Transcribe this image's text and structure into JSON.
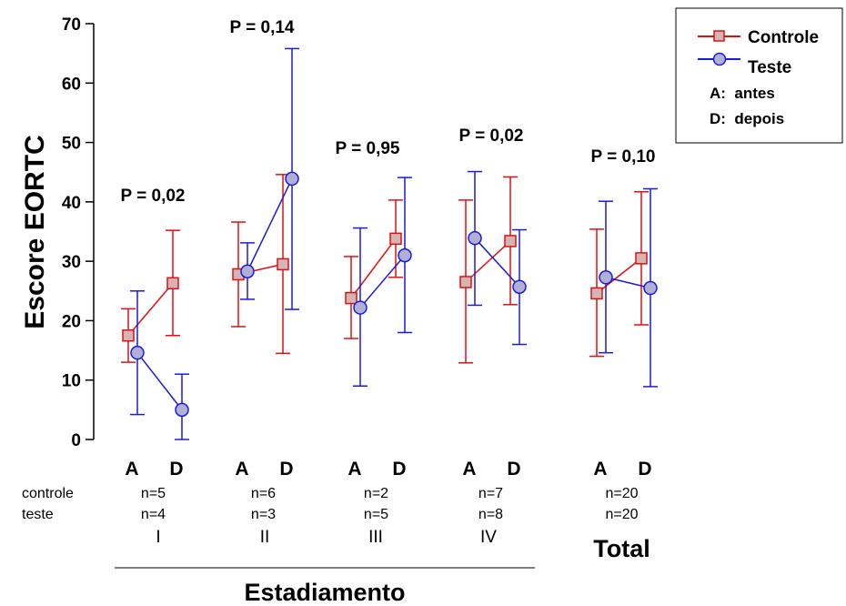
{
  "chart_data": {
    "type": "line",
    "ylabel": "Escore EORTC",
    "xlabel": "Estadiamento",
    "ylim": [
      0,
      70
    ],
    "yticks": [
      0,
      10,
      20,
      30,
      40,
      50,
      60,
      70
    ],
    "x_tick_labels": [
      "A",
      "D"
    ],
    "row_labels": [
      "controle",
      "teste"
    ],
    "groups": [
      {
        "label": "I",
        "p_value": "P = 0,02",
        "n_controle": "n=5",
        "n_teste": "n=4",
        "controle": {
          "mean": [
            17.5,
            26.3
          ],
          "low": [
            13,
            17.5
          ],
          "high": [
            22,
            35.2
          ]
        },
        "teste": {
          "mean": [
            14.6,
            5
          ],
          "low": [
            4.2,
            0
          ],
          "high": [
            25,
            11
          ]
        }
      },
      {
        "label": "II",
        "p_value": "P = 0,14",
        "n_controle": "n=6",
        "n_teste": "n=3",
        "controle": {
          "mean": [
            27.8,
            29.5
          ],
          "low": [
            19,
            14.5
          ],
          "high": [
            36.6,
            44.6
          ]
        },
        "teste": {
          "mean": [
            28.3,
            43.9
          ],
          "low": [
            23.6,
            21.9
          ],
          "high": [
            33.1,
            65.8
          ]
        }
      },
      {
        "label": "III",
        "p_value": "P = 0,95",
        "n_controle": "n=2",
        "n_teste": "n=5",
        "controle": {
          "mean": [
            23.8,
            33.8
          ],
          "low": [
            17,
            27.3
          ],
          "high": [
            30.8,
            40.3
          ]
        },
        "teste": {
          "mean": [
            22.2,
            31
          ],
          "low": [
            9,
            18
          ],
          "high": [
            35.6,
            44.1
          ]
        }
      },
      {
        "label": "IV",
        "p_value": "P = 0,02",
        "n_controle": "n=7",
        "n_teste": "n=8",
        "controle": {
          "mean": [
            26.5,
            33.4
          ],
          "low": [
            12.9,
            22.7
          ],
          "high": [
            40.3,
            44.2
          ]
        },
        "teste": {
          "mean": [
            33.9,
            25.7
          ],
          "low": [
            22.6,
            16
          ],
          "high": [
            45.1,
            35.3
          ]
        }
      },
      {
        "label": "Total",
        "p_value": "P = 0,10",
        "n_controle": "n=20",
        "n_teste": "n=20",
        "controle": {
          "mean": [
            24.6,
            30.5
          ],
          "low": [
            14,
            19.3
          ],
          "high": [
            35.4,
            41.7
          ]
        },
        "teste": {
          "mean": [
            27.3,
            25.5
          ],
          "low": [
            14.6,
            8.9
          ],
          "high": [
            40.1,
            42.2
          ]
        }
      }
    ],
    "series": [
      {
        "name": "Controle",
        "color": "#dd1111",
        "marker": "square",
        "marker_fill": "#d4b4b4"
      },
      {
        "name": "Teste",
        "color": "#1a1adc",
        "marker": "circle",
        "marker_fill": "#b0b0d4"
      }
    ],
    "legend": {
      "position": "top-right",
      "notes": [
        "A:  antes",
        "D:  depois"
      ]
    },
    "grid": false
  }
}
